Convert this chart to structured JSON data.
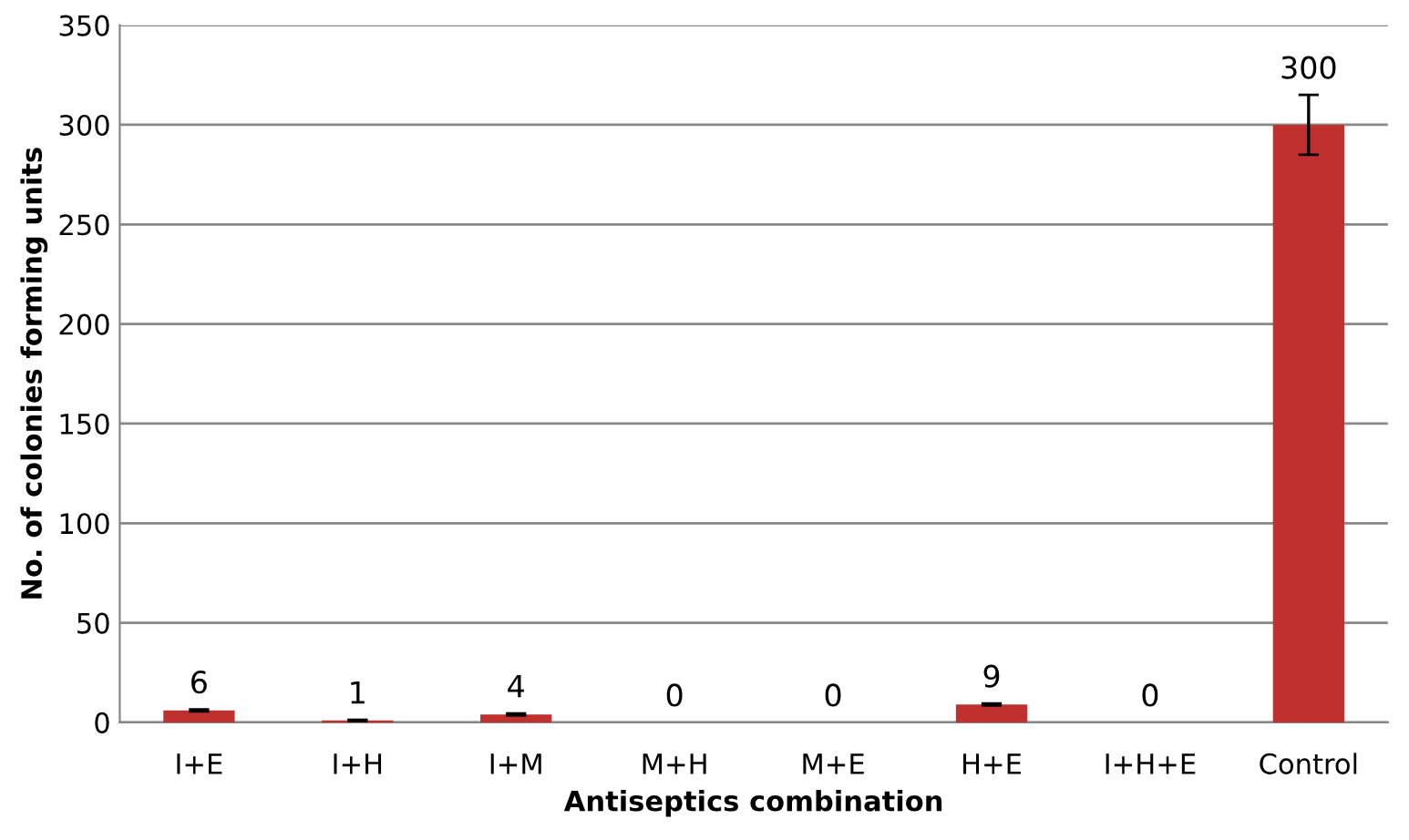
{
  "chart_data": {
    "type": "bar",
    "xlabel": "Antiseptics combination",
    "ylabel": "No. of colonies forming units",
    "categories": [
      "I+E",
      "I+H",
      "I+M",
      "M+H",
      "M+E",
      "H+E",
      "I+H+E",
      "Control"
    ],
    "values": [
      6,
      1,
      4,
      0,
      0,
      9,
      0,
      300
    ],
    "errors": [
      0.5,
      0.3,
      0.5,
      null,
      null,
      0.5,
      null,
      15
    ],
    "color": "#c0302e",
    "ylim": [
      0,
      350
    ],
    "yticks": [
      0,
      50,
      100,
      150,
      200,
      250,
      300,
      350
    ],
    "grid": "y",
    "data_labels": true
  }
}
